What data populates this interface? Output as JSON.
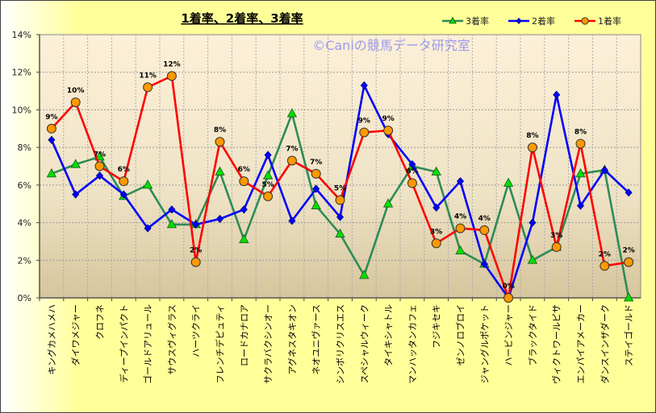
{
  "chart_data": {
    "type": "line",
    "title": "1着率、2着率、3着率",
    "watermark": "©Caniの競馬データ研究室",
    "xlabel": "",
    "ylabel": "",
    "ylim": [
      0,
      14
    ],
    "yticks": [
      "0%",
      "2%",
      "4%",
      "6%",
      "8%",
      "10%",
      "12%",
      "14%"
    ],
    "grid": true,
    "legend_position": "top-right",
    "categories": [
      "キングカメハメハ",
      "ダイワメジャー",
      "クロフネ",
      "ディープインパクト",
      "ゴールドアリュール",
      "サウスヴィグラス",
      "ハーツクライ",
      "フレンチデピュティ",
      "ロードカナロア",
      "サクラバクシンオー",
      "アグネスタキオン",
      "ネオユニヴァース",
      "シンボリクリスエス",
      "スペシャルウィーク",
      "タイキシャトル",
      "マンハッタンカフェ",
      "フジキセキ",
      "ゼンノロブロイ",
      "ジャングルポケット",
      "ハービンジャー",
      "ブラックタイド",
      "ヴィクトワールピサ",
      "エンパイアメーカー",
      "ダンスインザダーク",
      "ステイゴールド"
    ],
    "series": [
      {
        "name": "3着率",
        "color": "#2e8b57",
        "marker": "triangle",
        "marker_color": "#00e000",
        "values": [
          6.6,
          7.1,
          7.5,
          5.4,
          6.0,
          3.9,
          3.9,
          6.7,
          3.1,
          6.5,
          9.8,
          4.9,
          3.4,
          1.2,
          5.0,
          7.0,
          6.7,
          2.5,
          1.8,
          6.1,
          2.0,
          2.7,
          6.6,
          6.8,
          0.0
        ]
      },
      {
        "name": "2着率",
        "color": "#0000ff",
        "marker": "diamond",
        "marker_color": "#0000ff",
        "values": [
          8.4,
          5.5,
          6.5,
          5.5,
          3.7,
          4.7,
          3.9,
          4.2,
          4.7,
          7.6,
          4.1,
          5.8,
          4.3,
          11.3,
          8.7,
          7.1,
          4.8,
          6.2,
          1.8,
          0.0,
          4.0,
          10.8,
          4.9,
          6.8,
          5.6
        ]
      },
      {
        "name": "1着率",
        "color": "#ff0000",
        "marker": "circle",
        "marker_color": "#ff9900",
        "values": [
          9.0,
          10.4,
          7.0,
          6.2,
          11.2,
          11.8,
          1.9,
          8.3,
          6.2,
          5.4,
          7.3,
          6.6,
          5.2,
          8.8,
          8.9,
          6.1,
          2.9,
          3.7,
          3.6,
          0.0,
          8.0,
          2.7,
          8.2,
          1.7,
          1.9
        ],
        "data_labels": [
          "9%",
          "10%",
          "7%",
          "6%",
          "11%",
          "12%",
          "2%",
          "8%",
          "6%",
          "5%",
          "7%",
          "7%",
          "5%",
          "9%",
          "9%",
          "6%",
          "3%",
          "4%",
          "4%",
          "0%",
          "8%",
          "3%",
          "8%",
          "2%",
          "2%"
        ]
      }
    ]
  }
}
